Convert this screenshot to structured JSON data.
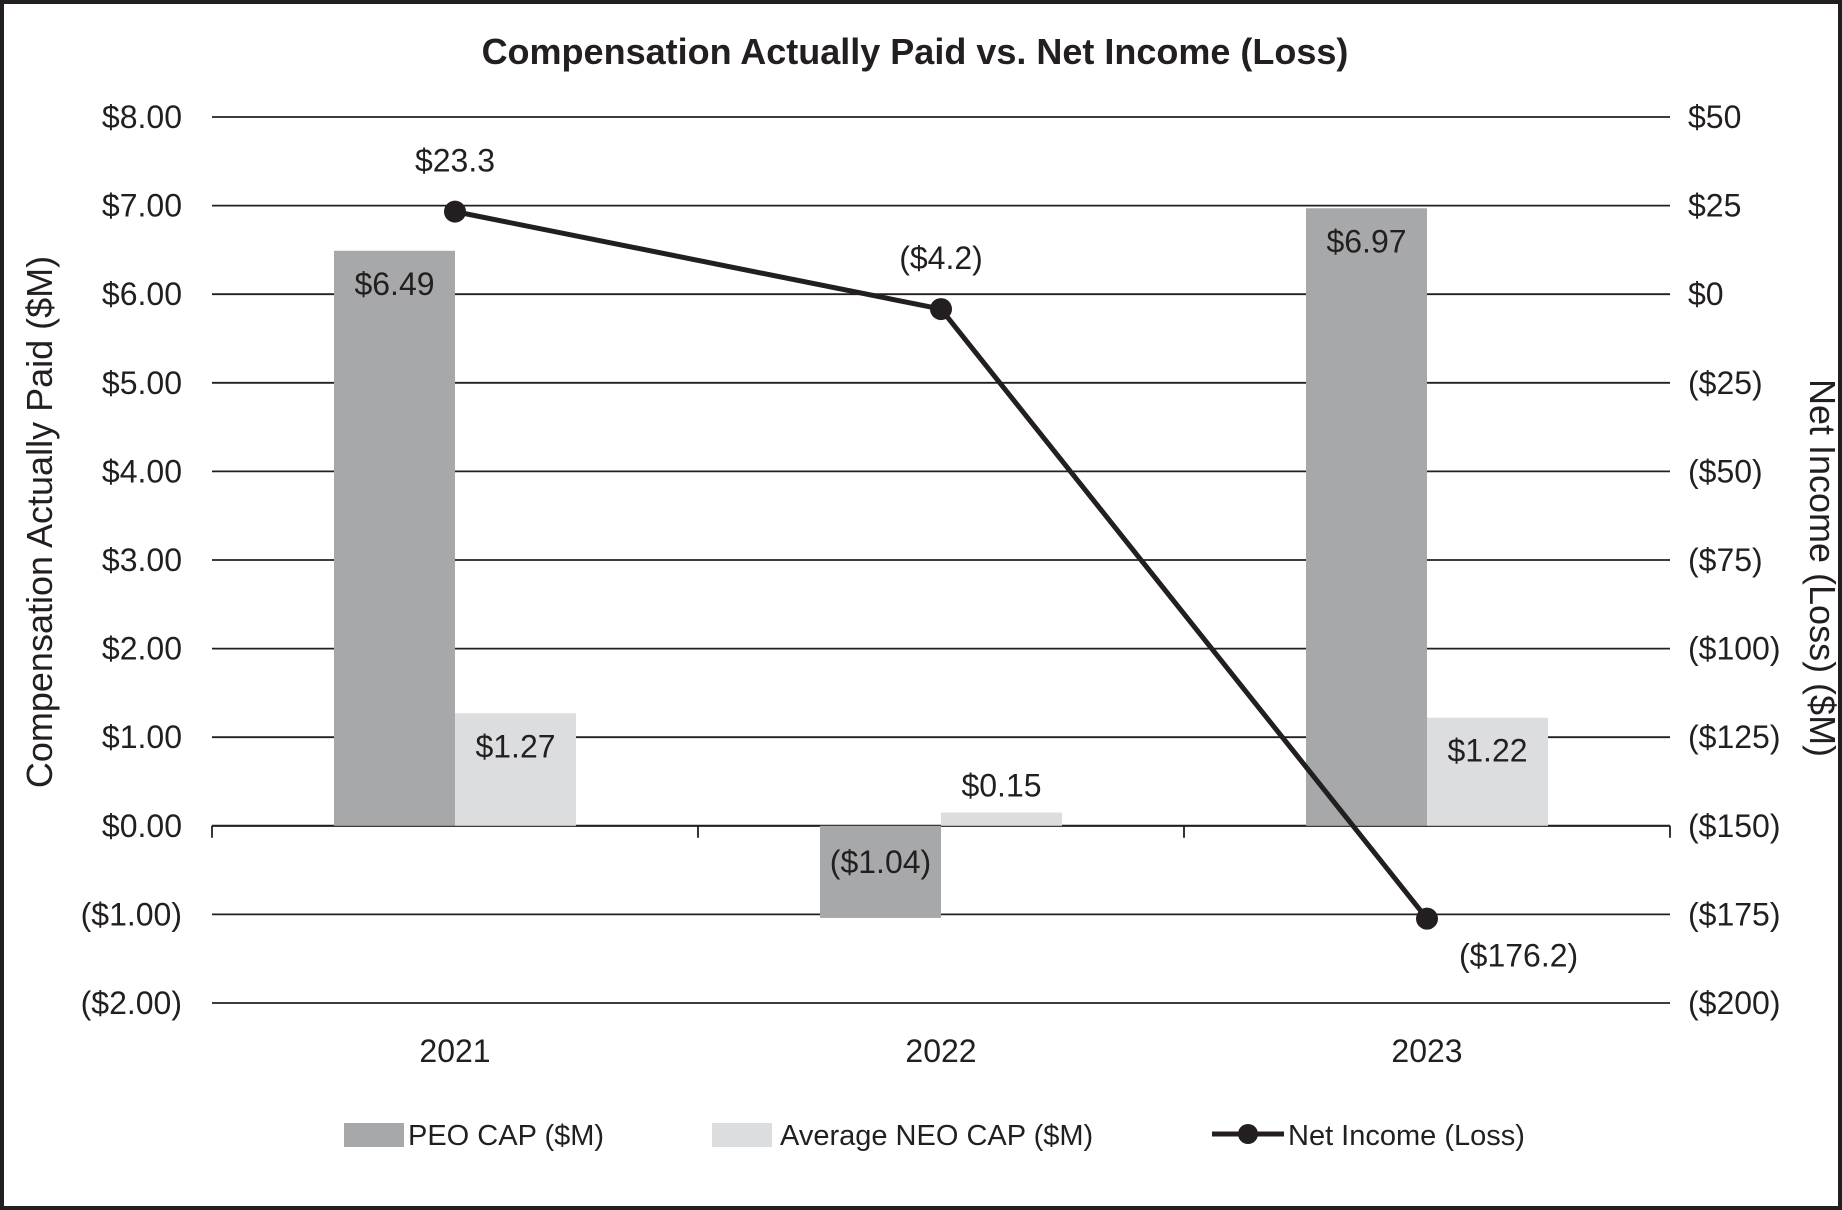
{
  "chart_data": {
    "type": "bar",
    "title": "Compensation Actually Paid vs. Net Income (Loss)",
    "categories": [
      "2021",
      "2022",
      "2023"
    ],
    "ylabel": "Compensation Actually Paid ($M)",
    "y2label": "Net Income (Loss) ($M)",
    "ylim": [
      -2,
      8
    ],
    "y2lim": [
      -200,
      50
    ],
    "y_ticks": [
      "$8.00",
      "$7.00",
      "$6.00",
      "$5.00",
      "$4.00",
      "$3.00",
      "$2.00",
      "$1.00",
      "$0.00",
      "($1.00)",
      "($2.00)"
    ],
    "y2_ticks": [
      "$50",
      "$25",
      "$0",
      "($25)",
      "($50)",
      "($75)",
      "($100)",
      "($125)",
      "($150)",
      "($175)",
      "($200)"
    ],
    "grid": true,
    "legend_position": "bottom",
    "series": [
      {
        "name": "PEO CAP ($M)",
        "kind": "bar",
        "axis": "left",
        "color": "#a7a8aa",
        "values": [
          6.49,
          -1.04,
          6.97
        ],
        "labels": [
          "$6.49",
          "($1.04)",
          "$6.97"
        ]
      },
      {
        "name": "Average NEO CAP ($M)",
        "kind": "bar",
        "axis": "left",
        "color": "#dcdddf",
        "values": [
          1.27,
          0.15,
          1.22
        ],
        "labels": [
          "$1.27",
          "$0.15",
          "$1.22"
        ]
      },
      {
        "name": "Net Income (Loss)",
        "kind": "line",
        "axis": "right",
        "color": "#231f20",
        "values": [
          23.3,
          -4.2,
          -176.2
        ],
        "labels": [
          "$23.3",
          "($4.2)",
          "($176.2)"
        ]
      }
    ]
  }
}
